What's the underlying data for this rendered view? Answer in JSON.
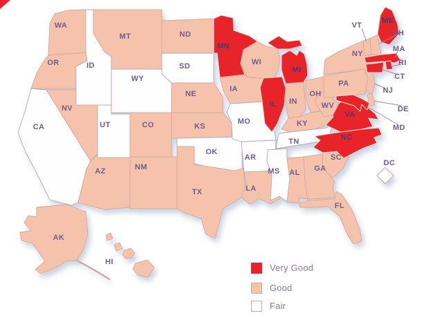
{
  "legend": {
    "items": [
      {
        "id": "very-good",
        "label": "Very Good",
        "rating": "Very Good",
        "color": "#e8242b"
      },
      {
        "id": "good",
        "label": "Good",
        "rating": "Good",
        "color": "#f5c3ac"
      },
      {
        "id": "fair",
        "label": "Fair",
        "rating": "Fair",
        "color": "#fefefe"
      }
    ]
  },
  "colors": {
    "very_good": "#e8242b",
    "good": "#f5c3ac",
    "fair": "#fefefe",
    "label": "#6f5b8c",
    "label_on_red": "#4a3a6d",
    "callout_line": "#9b8ba6",
    "accent_triangle": "#e8242b"
  },
  "map": {
    "states": [
      {
        "abbr": "WA",
        "rating": "Good"
      },
      {
        "abbr": "OR",
        "rating": "Good"
      },
      {
        "abbr": "CA",
        "rating": "Fair"
      },
      {
        "abbr": "ID",
        "rating": "Fair"
      },
      {
        "abbr": "NV",
        "rating": "Good"
      },
      {
        "abbr": "UT",
        "rating": "Fair"
      },
      {
        "abbr": "AZ",
        "rating": "Good"
      },
      {
        "abbr": "MT",
        "rating": "Good"
      },
      {
        "abbr": "WY",
        "rating": "Fair"
      },
      {
        "abbr": "CO",
        "rating": "Good"
      },
      {
        "abbr": "NM",
        "rating": "Good"
      },
      {
        "abbr": "ND",
        "rating": "Good"
      },
      {
        "abbr": "SD",
        "rating": "Fair"
      },
      {
        "abbr": "NE",
        "rating": "Good"
      },
      {
        "abbr": "KS",
        "rating": "Good"
      },
      {
        "abbr": "OK",
        "rating": "Fair"
      },
      {
        "abbr": "TX",
        "rating": "Good"
      },
      {
        "abbr": "MN",
        "rating": "Very Good"
      },
      {
        "abbr": "IA",
        "rating": "Good"
      },
      {
        "abbr": "MO",
        "rating": "Fair"
      },
      {
        "abbr": "AR",
        "rating": "Fair"
      },
      {
        "abbr": "LA",
        "rating": "Good"
      },
      {
        "abbr": "WI",
        "rating": "Good"
      },
      {
        "abbr": "IL",
        "rating": "Very Good"
      },
      {
        "abbr": "MI",
        "rating": "Very Good"
      },
      {
        "abbr": "IN",
        "rating": "Good"
      },
      {
        "abbr": "OH",
        "rating": "Good"
      },
      {
        "abbr": "KY",
        "rating": "Good"
      },
      {
        "abbr": "TN",
        "rating": "Fair"
      },
      {
        "abbr": "MS",
        "rating": "Fair"
      },
      {
        "abbr": "AL",
        "rating": "Good"
      },
      {
        "abbr": "GA",
        "rating": "Good"
      },
      {
        "abbr": "FL",
        "rating": "Good"
      },
      {
        "abbr": "SC",
        "rating": "Good"
      },
      {
        "abbr": "NC",
        "rating": "Very Good"
      },
      {
        "abbr": "VA",
        "rating": "Very Good"
      },
      {
        "abbr": "WV",
        "rating": "Good"
      },
      {
        "abbr": "PA",
        "rating": "Good"
      },
      {
        "abbr": "NY",
        "rating": "Good"
      },
      {
        "abbr": "NJ",
        "rating": "Good"
      },
      {
        "abbr": "DE",
        "rating": "Good"
      },
      {
        "abbr": "MD",
        "rating": "Very Good"
      },
      {
        "abbr": "DC",
        "rating": "Fair"
      },
      {
        "abbr": "VT",
        "rating": "Good"
      },
      {
        "abbr": "NH",
        "rating": "Good"
      },
      {
        "abbr": "MA",
        "rating": "Very Good"
      },
      {
        "abbr": "RI",
        "rating": "Very Good"
      },
      {
        "abbr": "CT",
        "rating": "Very Good"
      },
      {
        "abbr": "ME",
        "rating": "Very Good"
      },
      {
        "abbr": "AK",
        "rating": "Good"
      },
      {
        "abbr": "HI",
        "rating": "Good"
      }
    ]
  }
}
